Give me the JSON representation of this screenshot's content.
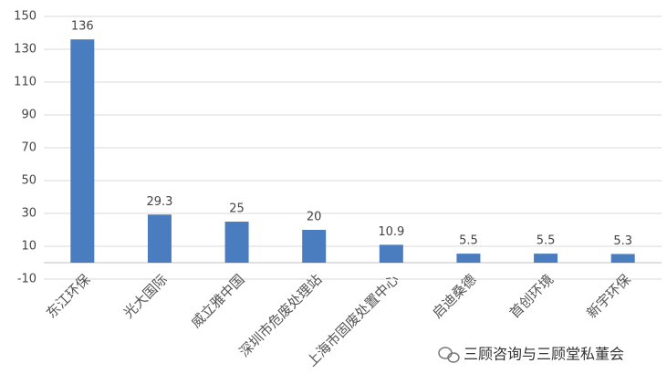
{
  "chart_data": {
    "type": "bar",
    "categories": [
      "东江环保",
      "光大国际",
      "威立雅中国",
      "深圳市危废处理站",
      "上海市固废处置中心",
      "启迪桑德",
      "首创环境",
      "新宇环保"
    ],
    "values": [
      136,
      29.3,
      25,
      20,
      10.9,
      5.5,
      5.5,
      5.3
    ],
    "color": "#4a7cc0",
    "ylim": [
      -10,
      150
    ],
    "yticks": [
      -10,
      10,
      30,
      50,
      70,
      90,
      110,
      130,
      150
    ],
    "grid": true
  },
  "watermark": "三顾咨询与三顾堂私董会"
}
